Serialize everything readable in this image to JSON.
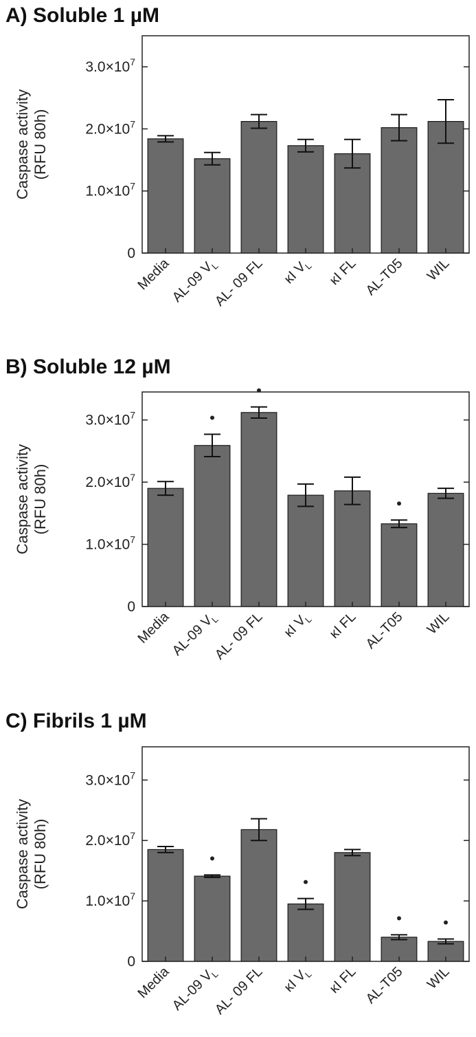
{
  "chart_data": [
    {
      "type": "bar",
      "panel": "A)",
      "title": "Soluble 1 µM",
      "ylabel_line1": "Caspase activity",
      "ylabel_line2": "(RFU 80h)",
      "ylim": [
        0,
        35000000
      ],
      "yticks": [
        {
          "value": 0,
          "base": "0",
          "exp": ""
        },
        {
          "value": 10000000,
          "base": "1.0×10",
          "exp": "7"
        },
        {
          "value": 20000000,
          "base": "2.0×10",
          "exp": "7"
        },
        {
          "value": 30000000,
          "base": "3.0×10",
          "exp": "7"
        }
      ],
      "categories": [
        {
          "label": "Media",
          "sub": ""
        },
        {
          "label": "AL-09 V",
          "sub": "L"
        },
        {
          "label": "AL- 09 FL",
          "sub": ""
        },
        {
          "label": "κI V",
          "sub": "L"
        },
        {
          "label": "κI FL",
          "sub": ""
        },
        {
          "label": "AL-T05",
          "sub": ""
        },
        {
          "label": "WIL",
          "sub": ""
        }
      ],
      "values": [
        18400000,
        15200000,
        21200000,
        17300000,
        16000000,
        20200000,
        21200000
      ],
      "errors": [
        500000,
        1000000,
        1100000,
        1000000,
        2300000,
        2100000,
        3500000
      ],
      "significant": [
        false,
        false,
        false,
        false,
        false,
        false,
        false
      ],
      "grid": false
    },
    {
      "type": "bar",
      "panel": "B)",
      "title": "Soluble 12 µM",
      "ylabel_line1": "Caspase activity",
      "ylabel_line2": "(RFU 80h)",
      "ylim": [
        0,
        34500000
      ],
      "yticks": [
        {
          "value": 0,
          "base": "0",
          "exp": ""
        },
        {
          "value": 10000000,
          "base": "1.0×10",
          "exp": "7"
        },
        {
          "value": 20000000,
          "base": "2.0×10",
          "exp": "7"
        },
        {
          "value": 30000000,
          "base": "3.0×10",
          "exp": "7"
        }
      ],
      "categories": [
        {
          "label": "Media",
          "sub": ""
        },
        {
          "label": "AL-09 V",
          "sub": "L"
        },
        {
          "label": "AL- 09 FL",
          "sub": ""
        },
        {
          "label": "κI V",
          "sub": "L"
        },
        {
          "label": "κI FL",
          "sub": ""
        },
        {
          "label": "AL-T05",
          "sub": ""
        },
        {
          "label": "WIL",
          "sub": ""
        }
      ],
      "values": [
        19000000,
        25900000,
        31200000,
        17900000,
        18600000,
        13300000,
        18200000
      ],
      "errors": [
        1100000,
        1800000,
        900000,
        1800000,
        2200000,
        600000,
        800000
      ],
      "significant": [
        false,
        true,
        true,
        false,
        false,
        true,
        false
      ],
      "grid": false
    },
    {
      "type": "bar",
      "panel": "C)",
      "title": "Fibrils 1 µM",
      "ylabel_line1": "Caspase activity",
      "ylabel_line2": "(RFU 80h)",
      "ylim": [
        0,
        35500000
      ],
      "yticks": [
        {
          "value": 0,
          "base": "0",
          "exp": ""
        },
        {
          "value": 10000000,
          "base": "1.0×10",
          "exp": "7"
        },
        {
          "value": 20000000,
          "base": "2.0×10",
          "exp": "7"
        },
        {
          "value": 30000000,
          "base": "3.0×10",
          "exp": "7"
        }
      ],
      "categories": [
        {
          "label": "Media",
          "sub": ""
        },
        {
          "label": "AL-09 V",
          "sub": "L"
        },
        {
          "label": "AL- 09 FL",
          "sub": ""
        },
        {
          "label": "κI V",
          "sub": "L"
        },
        {
          "label": "κI FL",
          "sub": ""
        },
        {
          "label": "AL-T05",
          "sub": ""
        },
        {
          "label": "WIL",
          "sub": ""
        }
      ],
      "values": [
        18500000,
        14100000,
        21800000,
        9500000,
        18000000,
        4000000,
        3300000
      ],
      "errors": [
        500000,
        200000,
        1800000,
        900000,
        500000,
        400000,
        400000
      ],
      "significant": [
        false,
        true,
        false,
        true,
        false,
        true,
        true
      ],
      "grid": false
    }
  ],
  "colors": {
    "bar": "#6a6a6a",
    "bar_edge": "#1a1a1a",
    "axis": "#222222"
  }
}
